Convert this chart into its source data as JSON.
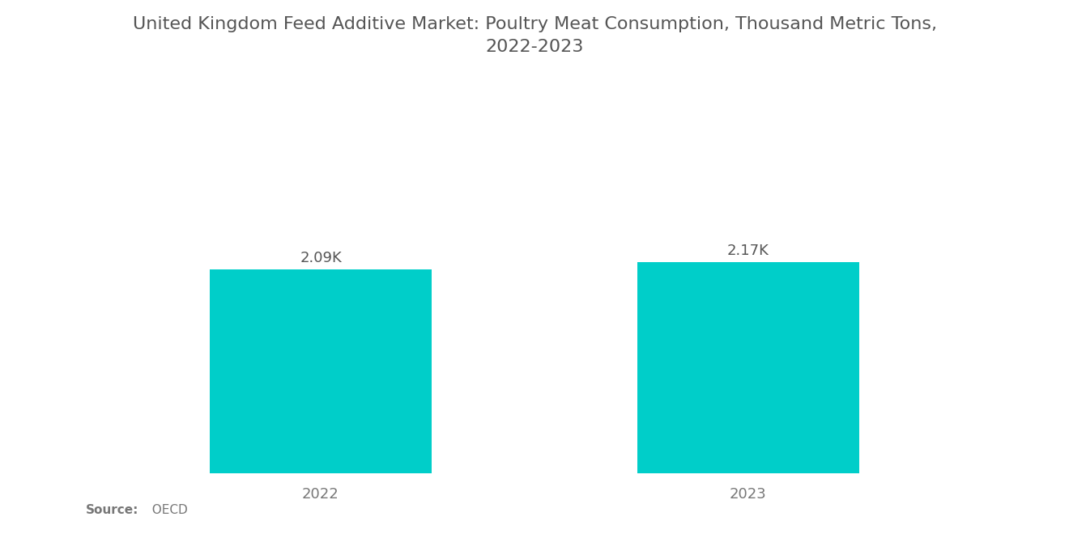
{
  "title": "United Kingdom Feed Additive Market: Poultry Meat Consumption, Thousand Metric Tons,\n2022-2023",
  "categories": [
    "2022",
    "2023"
  ],
  "values": [
    2090,
    2170
  ],
  "labels": [
    "2.09K",
    "2.17K"
  ],
  "bar_color": "#00CEC9",
  "background_color": "#ffffff",
  "title_fontsize": 16,
  "label_fontsize": 13,
  "tick_fontsize": 13,
  "source_bold": "Source:",
  "source_rest": "  OECD",
  "ylim": [
    0,
    3200
  ],
  "bar_width": 0.52,
  "xlim": [
    -0.55,
    1.55
  ]
}
